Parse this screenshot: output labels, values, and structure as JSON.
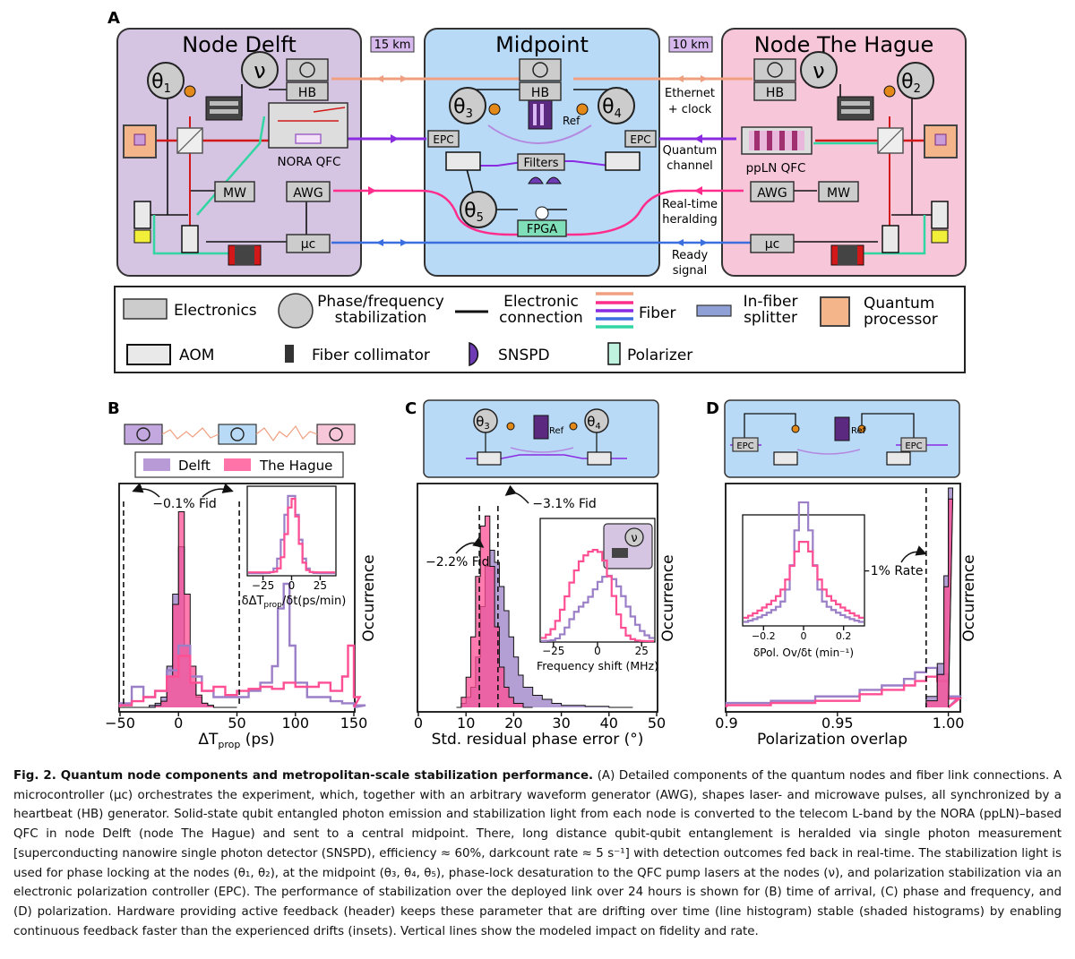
{
  "panelA": {
    "label": "A",
    "dist_left": "15 km",
    "dist_right": "10 km",
    "delft": {
      "title": "Node Delft",
      "theta": "θ",
      "theta_sub": "1",
      "nu": "ν",
      "hb": "HB",
      "qfc": "NORA QFC",
      "mw": "MW",
      "awg": "AWG",
      "uc": "μc"
    },
    "midpoint": {
      "title": "Midpoint",
      "hb": "HB",
      "theta3": "3",
      "theta4": "4",
      "theta5": "5",
      "epc": "EPC",
      "ref": "Ref",
      "filters": "Filters",
      "fpga": "FPGA"
    },
    "hague": {
      "title": "Node The Hague",
      "nu": "ν",
      "theta_sub": "2",
      "hb": "HB",
      "qfc": "ppLN QFC",
      "awg": "AWG",
      "mw": "MW",
      "uc": "μc"
    },
    "link_labels": [
      "Ethernet",
      "+ clock",
      "Quantum",
      "channel",
      "Real-time",
      "heralding",
      "Ready",
      "signal"
    ],
    "colors": {
      "delft_bg": "#d6c4e3",
      "mid_bg": "#b9daf6",
      "hague_bg": "#f7c7d9",
      "eth": "#f0a080",
      "quantum": "#8a2be2",
      "herald": "#ff2d8c",
      "ready": "#3b6fe0",
      "polarizer": "#33d6a3"
    },
    "legend": {
      "electronics": "Electronics",
      "phase_1": "Phase/frequency",
      "phase_2": "stabilization",
      "conn_1": "Electronic",
      "conn_2": "connection",
      "fiber": "Fiber",
      "split_1": "In-fiber",
      "split_2": "splitter",
      "qp_1": "Quantum",
      "qp_2": "processor",
      "aom": "AOM",
      "collimator": "Fiber collimator",
      "snspd": "SNSPD",
      "polarizer": "Polarizer"
    }
  },
  "panelB": {
    "label": "B",
    "legend": [
      "Delft",
      "The Hague"
    ],
    "annotation": "−0.1% Fid",
    "ylabel": "Occurrence",
    "inset_xlabel": "δΔT",
    "inset_xlabel_sub": "prop",
    "inset_xlabel_tail": "/δt(ps/min)",
    "xlabel_main": "ΔT",
    "xlabel_sub": "prop",
    "xlabel_unit": " (ps)"
  },
  "panelC": {
    "label": "C",
    "annotation1": "−3.1% Fid",
    "annotation2": "−2.2% Fid",
    "ylabel": "Occurrence",
    "inset_xlabel": "Frequency shift (MHz)",
    "xlabel": "Std. residual phase error (°)",
    "header_ref": "Ref"
  },
  "panelD": {
    "label": "D",
    "annotation": "−1% Rate",
    "ylabel": "Occurrence",
    "inset_xlabel": "δPol. Ov/δt (min⁻¹)",
    "xlabel": "Polarization overlap",
    "header_epc": "EPC",
    "header_ref": "Ref"
  },
  "chart_data": [
    {
      "type": "histogram",
      "panel": "B",
      "xlabel": "ΔTprop (ps)",
      "ylabel": "Occurrence",
      "xlim": [
        -50,
        150
      ],
      "xticks": [
        -50,
        0,
        50,
        100,
        150
      ],
      "series": [
        {
          "name": "Delft",
          "color": "#9b7fc7",
          "style": "shaded",
          "x": [
            -50,
            -45,
            -40,
            -35,
            -30,
            -25,
            -20,
            -15,
            -10,
            -5,
            0,
            5,
            10,
            15,
            20,
            25,
            30,
            35,
            40,
            45
          ],
          "values": [
            0,
            0,
            0,
            0,
            0,
            0.01,
            0.02,
            0.05,
            0.2,
            0.55,
            0.78,
            0.3,
            0.12,
            0.05,
            0.02,
            0.01,
            0,
            0,
            0,
            0
          ]
        },
        {
          "name": "The Hague",
          "color": "#ff4f94",
          "style": "shaded",
          "x": [
            -50,
            -45,
            -40,
            -35,
            -30,
            -25,
            -20,
            -15,
            -10,
            -5,
            0,
            5,
            10,
            15,
            20,
            25,
            30,
            35,
            40,
            45
          ],
          "values": [
            0,
            0,
            0,
            0,
            0,
            0,
            0.01,
            0.03,
            0.15,
            0.5,
            0.95,
            0.55,
            0.2,
            0.06,
            0.02,
            0.01,
            0,
            0,
            0,
            0
          ]
        },
        {
          "name": "Delft",
          "color": "#9b7fc7",
          "style": "line",
          "x": [
            -50,
            -40,
            -30,
            -20,
            -10,
            0,
            10,
            20,
            30,
            40,
            50,
            60,
            70,
            80,
            85,
            90,
            95,
            100,
            110,
            120,
            130,
            140,
            150
          ],
          "values": [
            0.02,
            0.1,
            0.05,
            0.08,
            0.18,
            0.3,
            0.15,
            0.08,
            0.05,
            0.05,
            0.05,
            0.08,
            0.12,
            0.2,
            0.48,
            0.6,
            0.3,
            0.12,
            0.05,
            0.05,
            0.03,
            0.02,
            0.01
          ]
        },
        {
          "name": "The Hague",
          "color": "#ff4f94",
          "style": "line",
          "x": [
            -50,
            -40,
            -30,
            -20,
            -10,
            0,
            10,
            20,
            30,
            40,
            50,
            60,
            70,
            80,
            90,
            100,
            110,
            120,
            130,
            140,
            145,
            150
          ],
          "values": [
            0.01,
            0.03,
            0.05,
            0.08,
            0.15,
            0.25,
            0.12,
            0.08,
            0.1,
            0.06,
            0.08,
            0.09,
            0.1,
            0.09,
            0.12,
            0.1,
            0.1,
            0.12,
            0.08,
            0.15,
            0.3,
            0.05
          ]
        }
      ],
      "vlines": [
        -47,
        52
      ],
      "annotation": "−0.1% Fid",
      "inset": {
        "xlabel": "δΔTprop/δt(ps/min)",
        "xlim": [
          -38,
          38
        ],
        "xticks": [
          -25,
          0,
          25
        ]
      }
    },
    {
      "type": "histogram",
      "panel": "C",
      "xlabel": "Std. residual phase error (°)",
      "ylabel": "Occurrence",
      "xlim": [
        0,
        50
      ],
      "xticks": [
        0,
        10,
        20,
        30,
        40,
        50
      ],
      "series": [
        {
          "name": "Delft",
          "color": "#9b7fc7",
          "style": "shaded",
          "x": [
            8,
            9,
            10,
            11,
            12,
            13,
            14,
            15,
            16,
            17,
            18,
            19,
            20,
            21,
            22,
            24,
            26,
            28,
            30,
            35,
            40
          ],
          "values": [
            0,
            0.02,
            0.05,
            0.1,
            0.25,
            0.5,
            0.7,
            0.78,
            0.72,
            0.6,
            0.48,
            0.35,
            0.25,
            0.16,
            0.1,
            0.06,
            0.04,
            0.02,
            0.01,
            0.005,
            0
          ]
        },
        {
          "name": "The Hague",
          "color": "#ff4f94",
          "style": "shaded",
          "x": [
            8,
            9,
            10,
            11,
            12,
            13,
            14,
            15,
            16,
            17,
            18,
            19,
            20,
            22
          ],
          "values": [
            0,
            0.05,
            0.15,
            0.35,
            0.65,
            0.9,
            0.95,
            0.7,
            0.4,
            0.2,
            0.1,
            0.05,
            0.02,
            0
          ]
        }
      ],
      "vlines": [
        12.8,
        16.7
      ],
      "annotations": [
        "−3.1% Fid",
        "−2.2% Fid"
      ],
      "inset": {
        "xlabel": "Frequency shift (MHz)",
        "xlim": [
          -32,
          32
        ],
        "xticks": [
          -25,
          0,
          25
        ]
      }
    },
    {
      "type": "histogram",
      "panel": "D",
      "xlabel": "Polarization overlap",
      "ylabel": "Occurrence",
      "xlim": [
        0.9,
        1.005
      ],
      "xticks": [
        0.9,
        0.95,
        1.0
      ],
      "series": [
        {
          "name": "Delft",
          "color": "#9b7fc7",
          "style": "line",
          "x": [
            0.9,
            0.92,
            0.94,
            0.96,
            0.97,
            0.98,
            0.985,
            0.99,
            0.995,
            1.0
          ],
          "values": [
            0.02,
            0.03,
            0.05,
            0.08,
            0.1,
            0.13,
            0.16,
            0.18,
            0.15,
            0.05
          ]
        },
        {
          "name": "The Hague",
          "color": "#ff4f94",
          "style": "line",
          "x": [
            0.9,
            0.92,
            0.94,
            0.96,
            0.97,
            0.98,
            0.985,
            0.99,
            0.995,
            1.0
          ],
          "values": [
            0.01,
            0.02,
            0.03,
            0.06,
            0.08,
            0.1,
            0.12,
            0.14,
            0.12,
            0.04
          ]
        },
        {
          "name": "Delft",
          "color": "#9b7fc7",
          "style": "shaded",
          "x": [
            0.99,
            0.995,
            0.998,
            1.0
          ],
          "values": [
            0.05,
            0.2,
            0.6,
            1.0
          ]
        },
        {
          "name": "The Hague",
          "color": "#ff4f94",
          "style": "shaded",
          "x": [
            0.99,
            0.995,
            0.998,
            1.0
          ],
          "values": [
            0.03,
            0.15,
            0.55,
            0.95
          ]
        }
      ],
      "vlines": [
        0.99
      ],
      "annotation": "−1% Rate",
      "inset": {
        "xlabel": "δPol. Ov/δt (min⁻¹)",
        "xlim": [
          -0.3,
          0.3
        ],
        "xticks": [
          -0.2,
          0,
          0.2
        ]
      }
    }
  ],
  "caption": {
    "fig": "Fig. 2.",
    "title": " Quantum node components and metropolitan-scale stabilization performance.",
    "text": " (A) Detailed components of the quantum nodes and fiber link connections. A microcontroller (μc) orchestrates the experiment, which, together with an arbitrary waveform generator (AWG), shapes laser- and microwave pulses, all synchronized by a heartbeat (HB) generator. Solid-state qubit entangled photon emission and stabilization light from each node is converted to the telecom L-band by the NORA (ppLN)–based QFC in node Delft (node The Hague) and sent to a central midpoint. There, long distance qubit-qubit entanglement is heralded via single photon measurement [superconducting nanowire single photon detector (SNSPD), efficiency ≈ 60%, darkcount rate ≈ 5 s⁻¹] with detection outcomes fed back in real-time. The stabilization light is used for phase locking at the nodes (θ₁, θ₂), at the midpoint (θ₃, θ₄, θ₅), phase-lock desaturation to the QFC pump lasers at the nodes (ν), and polarization stabilization via an electronic polarization controller (EPC). The performance of stabilization over the deployed link over 24 hours is shown for (B) time of arrival, (C) phase and frequency, and (D) polarization. Hardware providing active feedback (header) keeps these parameter that are drifting over time (line histogram) stable (shaded histograms) by enabling continuous feedback faster than the experienced drifts (insets). Vertical lines show the modeled impact on fidelity and rate."
  }
}
